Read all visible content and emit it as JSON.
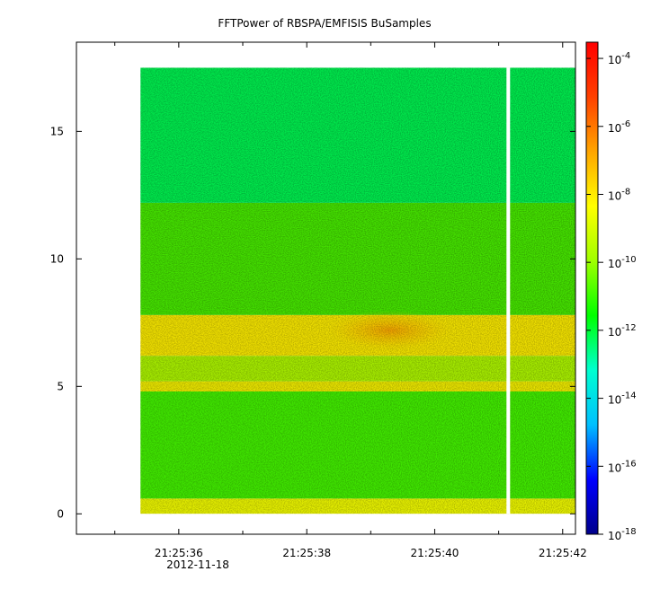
{
  "chart_data": {
    "type": "heatmap",
    "title": "FFTPower of RBSPA/EMFISIS  BuSamples",
    "x_axis": {
      "ticks": [
        "21:25:36",
        "21:25:38",
        "21:25:40",
        "21:25:42"
      ],
      "date_label": "2012-11-18",
      "range": [
        "21:25:34.4",
        "21:25:42.2"
      ]
    },
    "y_axis": {
      "ticks": [
        0,
        5,
        10,
        15
      ],
      "range": [
        -0.8,
        18.5
      ]
    },
    "colorbar": {
      "scale": "log",
      "range": [
        "1e-18",
        "3e-4"
      ],
      "ticks": [
        {
          "base": "10",
          "exp": "-4"
        },
        {
          "base": "10",
          "exp": "-6"
        },
        {
          "base": "10",
          "exp": "-8"
        },
        {
          "base": "10",
          "exp": "-10"
        },
        {
          "base": "10",
          "exp": "-12"
        },
        {
          "base": "10",
          "exp": "-14"
        },
        {
          "base": "10",
          "exp": "-16"
        },
        {
          "base": "10",
          "exp": "-18"
        }
      ],
      "colors": [
        "#00008b",
        "#0000ff",
        "#00bfff",
        "#00ffd0",
        "#00ff00",
        "#a0ff00",
        "#ffff00",
        "#ffa500",
        "#ff4000",
        "#ff0000"
      ]
    },
    "data_extent": {
      "x_start": "21:25:35.4",
      "x_end": "21:25:42.2",
      "y_max": 17.5,
      "gap_at": "21:25:41.15"
    },
    "bands": [
      {
        "y_from": 0,
        "y_to": 0.6,
        "level": "1e-9",
        "color": "#e6f000"
      },
      {
        "y_from": 0.6,
        "y_to": 4.8,
        "level": "1e-10",
        "color": "#40e800"
      },
      {
        "y_from": 4.8,
        "y_to": 5.2,
        "level": "3e-9",
        "color": "#e8e400"
      },
      {
        "y_from": 5.2,
        "y_to": 6.2,
        "level": "3e-10",
        "color": "#a6ec00"
      },
      {
        "y_from": 6.2,
        "y_to": 7.8,
        "level": "2e-9",
        "color": "#f0e000"
      },
      {
        "y_from": 7.8,
        "y_to": 12.2,
        "level": "1e-10",
        "color": "#44e000"
      },
      {
        "y_from": 12.2,
        "y_to": 17.5,
        "level": "1e-11",
        "color": "#00e84c"
      }
    ],
    "hotspot": {
      "x": "21:25:39.3",
      "y": 7.2,
      "level": "1e-8",
      "color": "#f4a000"
    }
  }
}
